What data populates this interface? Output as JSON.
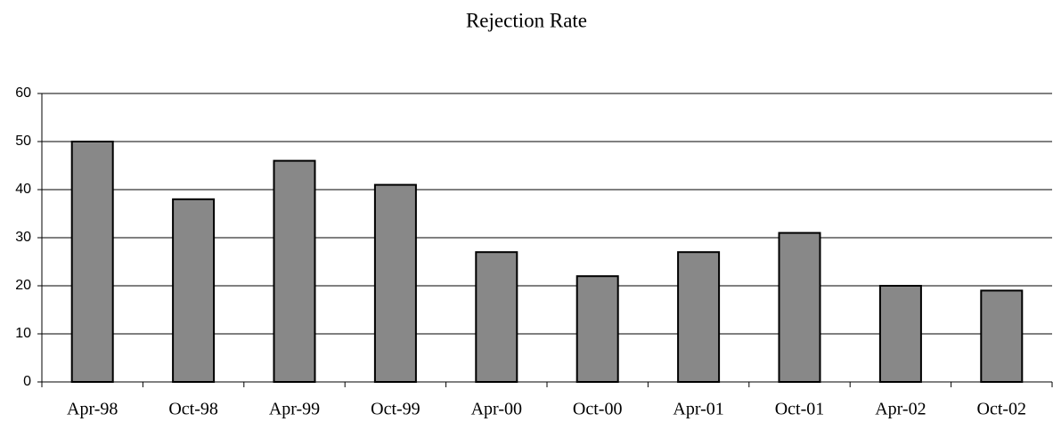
{
  "chart_data": {
    "type": "bar",
    "title": "Rejection Rate",
    "categories": [
      "Apr-98",
      "Oct-98",
      "Apr-99",
      "Oct-99",
      "Apr-00",
      "Oct-00",
      "Apr-01",
      "Oct-01",
      "Apr-02",
      "Oct-02"
    ],
    "values": [
      50,
      38,
      46,
      41,
      27,
      22,
      27,
      31,
      20,
      19
    ],
    "color": "#888888",
    "ylim": [
      0,
      60
    ],
    "yticks": [
      0,
      10,
      20,
      30,
      40,
      50,
      60
    ],
    "grid": true
  }
}
